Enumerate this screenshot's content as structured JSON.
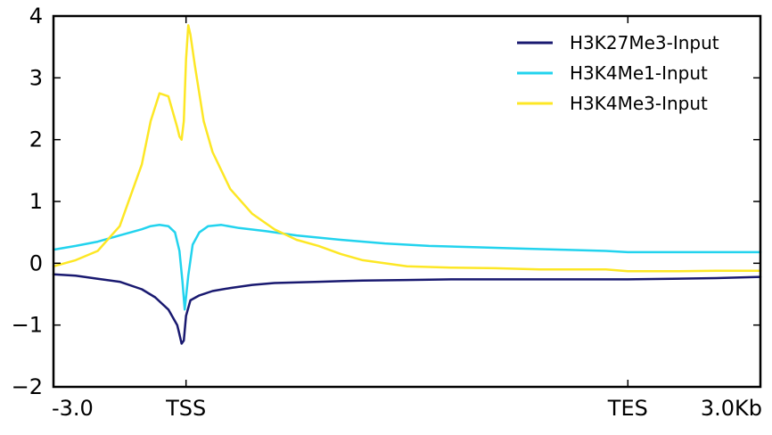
{
  "chart_data": {
    "type": "line",
    "title": "",
    "xlabel": "",
    "ylabel": "",
    "x_ticks": [
      {
        "x": -3.0,
        "label": "-3.0"
      },
      {
        "x": 0,
        "label": "TSS"
      },
      {
        "x": 10,
        "label": "TES"
      },
      {
        "x": 13.0,
        "label": "3.0Kb"
      }
    ],
    "xlim": [
      -3.0,
      13.0
    ],
    "ylim": [
      -2,
      4
    ],
    "y_ticks": [
      {
        "y": 4,
        "label": "4"
      },
      {
        "y": 3,
        "label": "3"
      },
      {
        "y": 2,
        "label": "2"
      },
      {
        "y": 1,
        "label": "1"
      },
      {
        "y": 0,
        "label": "0"
      },
      {
        "y": -1,
        "label": "−1"
      },
      {
        "y": -2,
        "label": "−2"
      }
    ],
    "grid": false,
    "legend": "top-right",
    "series": [
      {
        "name": "H3K27Me3-Input",
        "color": "#191970",
        "x": [
          -3.0,
          -2.5,
          -2.0,
          -1.5,
          -1.0,
          -0.7,
          -0.4,
          -0.2,
          -0.15,
          -0.1,
          -0.05,
          0.0,
          0.1,
          0.3,
          0.6,
          1.0,
          1.5,
          2.0,
          3.0,
          4.0,
          5.0,
          6.0,
          7.0,
          8.0,
          9.0,
          10.0,
          11.0,
          12.0,
          13.0
        ],
        "y": [
          -0.18,
          -0.2,
          -0.25,
          -0.3,
          -0.42,
          -0.55,
          -0.75,
          -1.0,
          -1.15,
          -1.3,
          -1.25,
          -0.85,
          -0.6,
          -0.52,
          -0.45,
          -0.4,
          -0.35,
          -0.32,
          -0.3,
          -0.28,
          -0.27,
          -0.26,
          -0.26,
          -0.26,
          -0.26,
          -0.26,
          -0.25,
          -0.24,
          -0.22
        ]
      },
      {
        "name": "H3K4Me1-Input",
        "color": "#22d3ee",
        "x": [
          -3.0,
          -2.5,
          -2.0,
          -1.5,
          -1.0,
          -0.8,
          -0.6,
          -0.4,
          -0.25,
          -0.15,
          -0.08,
          -0.03,
          0.05,
          0.15,
          0.3,
          0.5,
          0.8,
          1.2,
          1.8,
          2.5,
          3.5,
          4.5,
          5.5,
          6.5,
          7.5,
          8.5,
          9.5,
          10.0,
          11.0,
          12.0,
          13.0
        ],
        "y": [
          0.22,
          0.28,
          0.35,
          0.45,
          0.55,
          0.6,
          0.62,
          0.6,
          0.5,
          0.2,
          -0.3,
          -0.75,
          -0.2,
          0.3,
          0.5,
          0.6,
          0.62,
          0.57,
          0.52,
          0.45,
          0.38,
          0.32,
          0.28,
          0.26,
          0.24,
          0.22,
          0.2,
          0.18,
          0.18,
          0.18,
          0.18
        ]
      },
      {
        "name": "H3K4Me3-Input",
        "color": "#fde725",
        "x": [
          -3.0,
          -2.5,
          -2.0,
          -1.5,
          -1.2,
          -1.0,
          -0.8,
          -0.6,
          -0.4,
          -0.2,
          -0.15,
          -0.1,
          -0.05,
          0.0,
          0.05,
          0.1,
          0.2,
          0.4,
          0.6,
          1.0,
          1.5,
          2.0,
          2.5,
          3.0,
          3.5,
          4.0,
          5.0,
          6.0,
          7.0,
          8.0,
          9.0,
          9.5,
          10.0,
          11.0,
          12.0,
          13.0
        ],
        "y": [
          -0.05,
          0.05,
          0.2,
          0.6,
          1.2,
          1.6,
          2.3,
          2.75,
          2.7,
          2.2,
          2.05,
          2.0,
          2.3,
          3.3,
          3.85,
          3.7,
          3.2,
          2.3,
          1.8,
          1.2,
          0.8,
          0.55,
          0.38,
          0.28,
          0.15,
          0.05,
          -0.05,
          -0.07,
          -0.08,
          -0.1,
          -0.1,
          -0.1,
          -0.13,
          -0.13,
          -0.12,
          -0.12
        ]
      }
    ]
  }
}
